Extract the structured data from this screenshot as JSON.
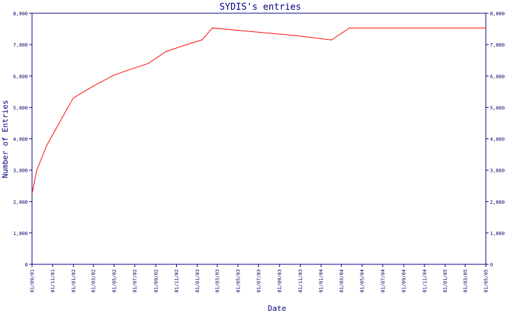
{
  "chart_data": {
    "type": "line",
    "title": "SYDIS's entries",
    "xlabel": "Date",
    "ylabel": "Number of Entries",
    "ylim": [
      0,
      8000
    ],
    "y_ticks": [
      {
        "value": 0,
        "label": "0"
      },
      {
        "value": 1000,
        "label": "1,000"
      },
      {
        "value": 2000,
        "label": "2,000"
      },
      {
        "value": 3000,
        "label": "3,000"
      },
      {
        "value": 4000,
        "label": "4,000"
      },
      {
        "value": 5000,
        "label": "5,000"
      },
      {
        "value": 6000,
        "label": "6,000"
      },
      {
        "value": 7000,
        "label": "7,000"
      },
      {
        "value": 8000,
        "label": "8,000"
      }
    ],
    "xlim": [
      "2001-09-01",
      "2005-05-01"
    ],
    "x_ticks": [
      {
        "date": "2001-09-01",
        "label": "01/09/01"
      },
      {
        "date": "2001-11-01",
        "label": "01/11/01"
      },
      {
        "date": "2002-01-01",
        "label": "01/01/02"
      },
      {
        "date": "2002-03-01",
        "label": "01/03/02"
      },
      {
        "date": "2002-05-01",
        "label": "01/05/02"
      },
      {
        "date": "2002-07-01",
        "label": "01/07/02"
      },
      {
        "date": "2002-09-01",
        "label": "01/09/02"
      },
      {
        "date": "2002-11-01",
        "label": "01/11/02"
      },
      {
        "date": "2003-01-01",
        "label": "01/01/03"
      },
      {
        "date": "2003-03-01",
        "label": "01/03/03"
      },
      {
        "date": "2003-05-01",
        "label": "01/05/03"
      },
      {
        "date": "2003-07-01",
        "label": "01/07/03"
      },
      {
        "date": "2003-09-01",
        "label": "01/09/03"
      },
      {
        "date": "2003-11-01",
        "label": "01/11/03"
      },
      {
        "date": "2004-01-01",
        "label": "01/01/04"
      },
      {
        "date": "2004-03-01",
        "label": "01/03/04"
      },
      {
        "date": "2004-05-01",
        "label": "01/05/04"
      },
      {
        "date": "2004-07-01",
        "label": "01/07/04"
      },
      {
        "date": "2004-09-01",
        "label": "01/09/04"
      },
      {
        "date": "2004-11-01",
        "label": "01/11/04"
      },
      {
        "date": "2005-01-01",
        "label": "01/01/05"
      },
      {
        "date": "2005-03-01",
        "label": "01/03/05"
      },
      {
        "date": "2005-05-01",
        "label": "01/05/05"
      }
    ],
    "grid": false,
    "colors": {
      "line": "#ff0000",
      "axis": "#000080",
      "text": "#000080",
      "background": "#ffffff"
    },
    "series": [
      {
        "points": [
          {
            "x": "2001-09-01",
            "y": 2250
          },
          {
            "x": "2001-09-15",
            "y": 3000
          },
          {
            "x": "2001-10-15",
            "y": 3800
          },
          {
            "x": "2001-11-20",
            "y": 4500
          },
          {
            "x": "2002-01-01",
            "y": 5300
          },
          {
            "x": "2002-03-01",
            "y": 5680
          },
          {
            "x": "2002-05-01",
            "y": 6030
          },
          {
            "x": "2002-06-15",
            "y": 6200
          },
          {
            "x": "2002-08-10",
            "y": 6400
          },
          {
            "x": "2002-10-01",
            "y": 6780
          },
          {
            "x": "2002-12-01",
            "y": 7000
          },
          {
            "x": "2003-01-15",
            "y": 7150
          },
          {
            "x": "2003-02-15",
            "y": 7530
          },
          {
            "x": "2003-04-15",
            "y": 7470
          },
          {
            "x": "2003-10-15",
            "y": 7290
          },
          {
            "x": "2004-02-01",
            "y": 7150
          },
          {
            "x": "2004-03-25",
            "y": 7530
          },
          {
            "x": "2005-05-01",
            "y": 7530
          }
        ]
      }
    ]
  }
}
